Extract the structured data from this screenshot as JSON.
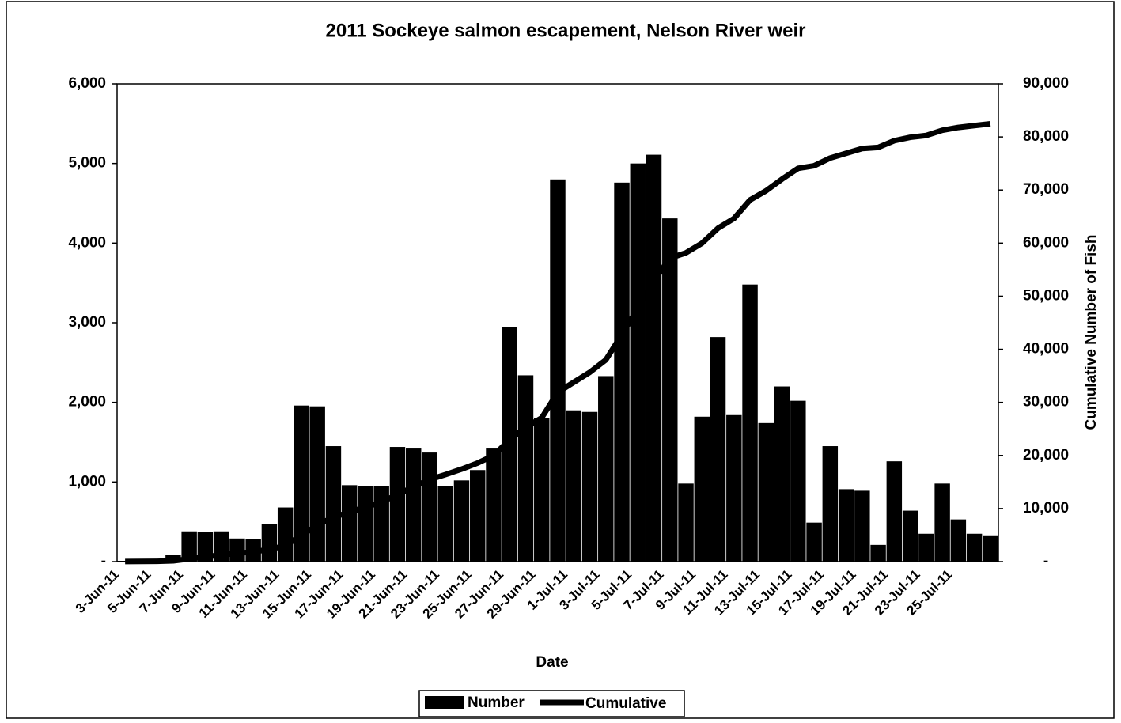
{
  "chart_data": {
    "type": "bar_line",
    "title": "2011 Sockeye salmon escapement, Nelson River weir",
    "xlabel": "Date",
    "y2label": "Cumulative Number of Fish",
    "categories": [
      "3-Jun-11",
      null,
      "5-Jun-11",
      null,
      "7-Jun-11",
      null,
      "9-Jun-11",
      null,
      "11-Jun-11",
      null,
      "13-Jun-11",
      null,
      "15-Jun-11",
      null,
      "17-Jun-11",
      null,
      "19-Jun-11",
      null,
      "21-Jun-11",
      null,
      "23-Jun-11",
      null,
      "25-Jun-11",
      null,
      "27-Jun-11",
      null,
      "29-Jun-11",
      null,
      "1-Jul-11",
      null,
      "3-Jul-11",
      null,
      "5-Jul-11",
      null,
      "7-Jul-11",
      null,
      "9-Jul-11",
      null,
      "11-Jul-11",
      null,
      "13-Jul-11",
      null,
      "15-Jul-11",
      null,
      "17-Jul-11",
      null,
      "19-Jul-11",
      null,
      "21-Jul-11",
      null,
      "23-Jul-11",
      null,
      "25-Jul-11",
      null,
      null
    ],
    "series": [
      {
        "name": "Number",
        "type": "bar",
        "color": "#000000",
        "values": [
          10,
          20,
          30,
          80,
          380,
          370,
          380,
          290,
          280,
          470,
          680,
          1960,
          1950,
          1450,
          960,
          950,
          950,
          1440,
          1430,
          1370,
          950,
          1020,
          1150,
          1430,
          2950,
          2340,
          1800,
          4800,
          1900,
          1880,
          2330,
          4760,
          5000,
          5110,
          4310,
          980,
          1820,
          2820,
          1840,
          3480,
          1740,
          2200,
          2020,
          490,
          1450,
          910,
          890,
          210,
          1260,
          640,
          350,
          980,
          530,
          350,
          330
        ]
      },
      {
        "name": "Cumulative",
        "type": "line",
        "axis": "y2",
        "color": "#000000",
        "values": [
          10,
          30,
          60,
          140,
          520,
          890,
          1270,
          1560,
          1840,
          2310,
          2990,
          4950,
          6900,
          8350,
          9310,
          10260,
          11210,
          12650,
          14080,
          15450,
          16400,
          17420,
          18570,
          20000,
          22950,
          25290,
          27090,
          31890,
          33790,
          35670,
          38000,
          42760,
          47760,
          52870,
          57180,
          58160,
          59980,
          62800,
          64640,
          68120,
          69860,
          72060,
          74080,
          74570,
          76020,
          76930,
          77820,
          78030,
          79290,
          79930,
          80280,
          81260,
          81790,
          82140,
          82470
        ]
      }
    ],
    "ylim": [
      0,
      6000
    ],
    "yticks": [
      {
        "value": 0,
        "label": "-"
      },
      {
        "value": 1000,
        "label": "1,000"
      },
      {
        "value": 2000,
        "label": "2,000"
      },
      {
        "value": 3000,
        "label": "3,000"
      },
      {
        "value": 4000,
        "label": "4,000"
      },
      {
        "value": 5000,
        "label": "5,000"
      },
      {
        "value": 6000,
        "label": "6,000"
      }
    ],
    "y2lim": [
      0,
      90000
    ],
    "y2ticks": [
      {
        "value": 0,
        "label": "-"
      },
      {
        "value": 10000,
        "label": "10,000"
      },
      {
        "value": 20000,
        "label": "20,000"
      },
      {
        "value": 30000,
        "label": "30,000"
      },
      {
        "value": 40000,
        "label": "40,000"
      },
      {
        "value": 50000,
        "label": "50,000"
      },
      {
        "value": 60000,
        "label": "60,000"
      },
      {
        "value": 70000,
        "label": "70,000"
      },
      {
        "value": 80000,
        "label": "80,000"
      },
      {
        "value": 90000,
        "label": "90,000"
      }
    ],
    "legend": "bottom"
  }
}
